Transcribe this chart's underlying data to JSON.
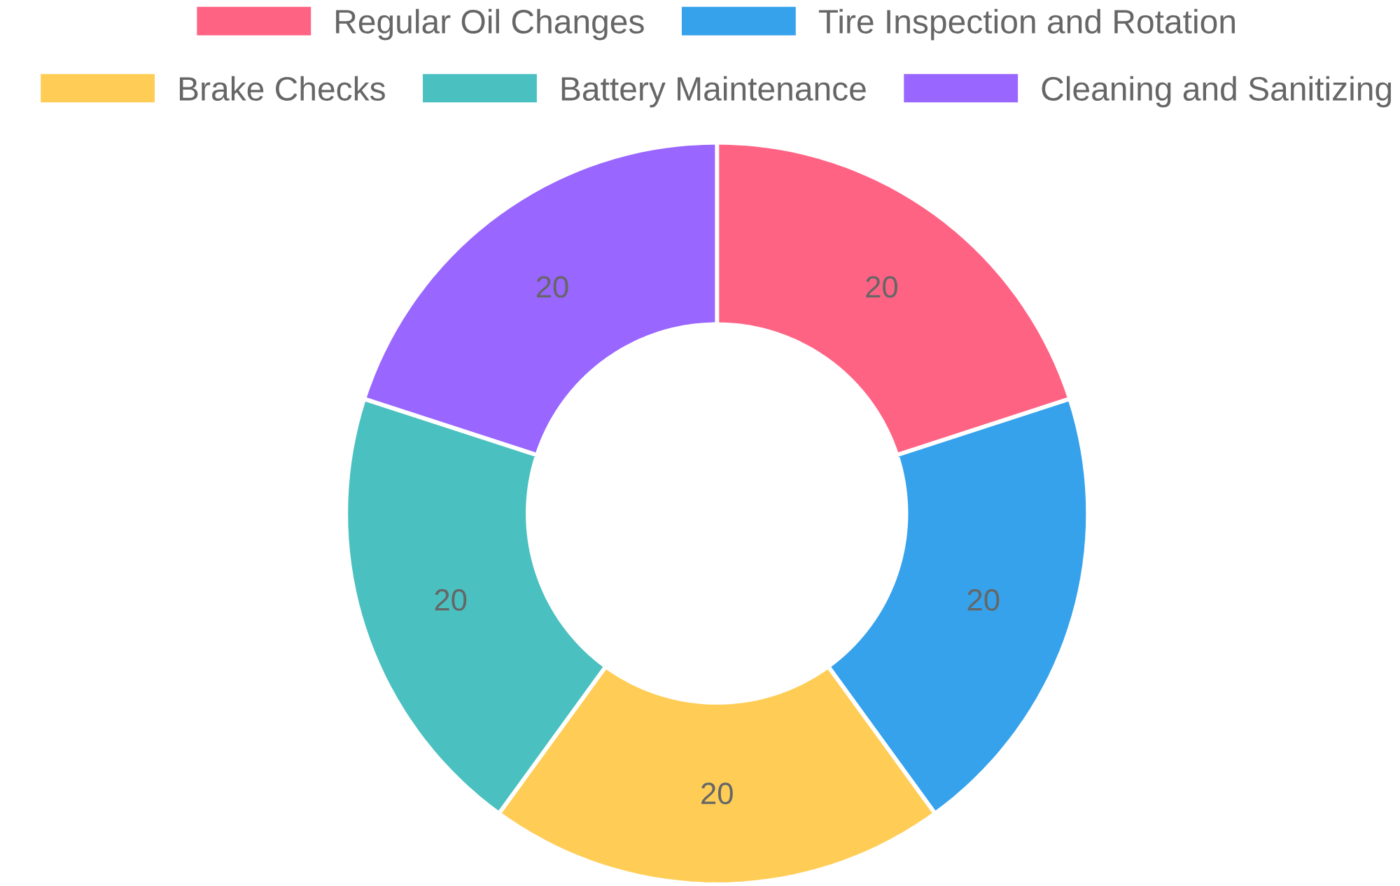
{
  "chart_data": {
    "type": "donut",
    "categories": [
      "Regular Oil Changes",
      "Tire Inspection and Rotation",
      "Brake Checks",
      "Battery Maintenance",
      "Cleaning and Sanitizing"
    ],
    "values": [
      20,
      20,
      20,
      20,
      20
    ],
    "colors": [
      "#ff6384",
      "#36a2eb",
      "#ffcd56",
      "#4bc0c0",
      "#9966ff"
    ],
    "legend": "top",
    "data_labels": true
  }
}
